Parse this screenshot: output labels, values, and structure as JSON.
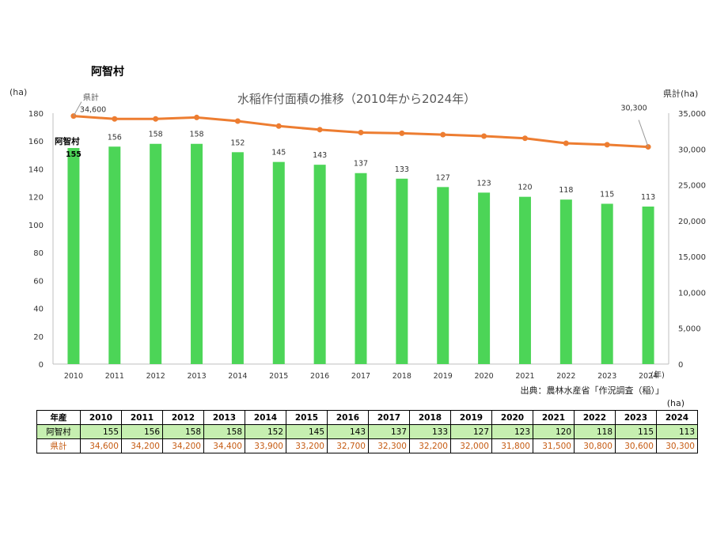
{
  "header": {
    "village_name": "阿智村",
    "left_unit": "(ha)",
    "right_unit": "県計(ha)",
    "title": "水稲作付面積の推移（2010年から2024年）",
    "source": "出典：農林水産省「作況調査（稲）」",
    "table_unit": "(ha)"
  },
  "colors": {
    "bar": "#4cd557",
    "line": "#ed7d31",
    "village_row_bg": "#c6efb0",
    "pref_text": "#c55a11"
  },
  "chart_data": {
    "type": "bar+line",
    "title": "水稲作付面積の推移（2010年から2024年）",
    "x_unit_label": "(年)",
    "categories": [
      "2010",
      "2011",
      "2012",
      "2013",
      "2014",
      "2015",
      "2016",
      "2017",
      "2018",
      "2019",
      "2020",
      "2021",
      "2022",
      "2023",
      "2024"
    ],
    "series": [
      {
        "name": "阿智村",
        "type": "bar",
        "axis": "left",
        "values": [
          155,
          156,
          158,
          158,
          152,
          145,
          143,
          137,
          133,
          127,
          123,
          120,
          118,
          115,
          113
        ]
      },
      {
        "name": "県計",
        "type": "line",
        "axis": "right",
        "values": [
          34600,
          34200,
          34200,
          34400,
          33900,
          33200,
          32700,
          32300,
          32200,
          32000,
          31800,
          31500,
          30800,
          30600,
          30300
        ]
      }
    ],
    "left_axis": {
      "label": "(ha)",
      "min": 0,
      "max": 180,
      "ticks": [
        0,
        20,
        40,
        60,
        80,
        100,
        120,
        140,
        160,
        180
      ]
    },
    "right_axis": {
      "label": "県計(ha)",
      "min": 0,
      "max": 35000,
      "ticks": [
        0,
        5000,
        10000,
        15000,
        20000,
        25000,
        30000,
        35000
      ],
      "tick_labels": [
        "0",
        "5,000",
        "10,000",
        "15,000",
        "20,000",
        "25,000",
        "30,000",
        "35,000"
      ]
    },
    "annotations": [
      {
        "text": "県計",
        "series": "県計",
        "point": "2010"
      },
      {
        "text": "34,600",
        "series": "県計",
        "point": "2010"
      },
      {
        "text": "30,300",
        "series": "県計",
        "point": "2024"
      },
      {
        "text": "阿智村",
        "series": "阿智村",
        "point": "2010"
      }
    ],
    "bar_labels": [
      "155",
      "156",
      "158",
      "158",
      "152",
      "145",
      "143",
      "137",
      "133",
      "127",
      "123",
      "120",
      "118",
      "115",
      "113"
    ],
    "grid": false
  },
  "table": {
    "header_label": "年産",
    "years": [
      "2010",
      "2011",
      "2012",
      "2013",
      "2014",
      "2015",
      "2016",
      "2017",
      "2018",
      "2019",
      "2020",
      "2021",
      "2022",
      "2023",
      "2024"
    ],
    "village_label": "阿智村",
    "village_values": [
      "155",
      "156",
      "158",
      "158",
      "152",
      "145",
      "143",
      "137",
      "133",
      "127",
      "123",
      "120",
      "118",
      "115",
      "113"
    ],
    "pref_label": "県計",
    "pref_values": [
      "34,600",
      "34,200",
      "34,200",
      "34,400",
      "33,900",
      "33,200",
      "32,700",
      "32,300",
      "32,200",
      "32,000",
      "31,800",
      "31,500",
      "30,800",
      "30,600",
      "30,300"
    ]
  }
}
